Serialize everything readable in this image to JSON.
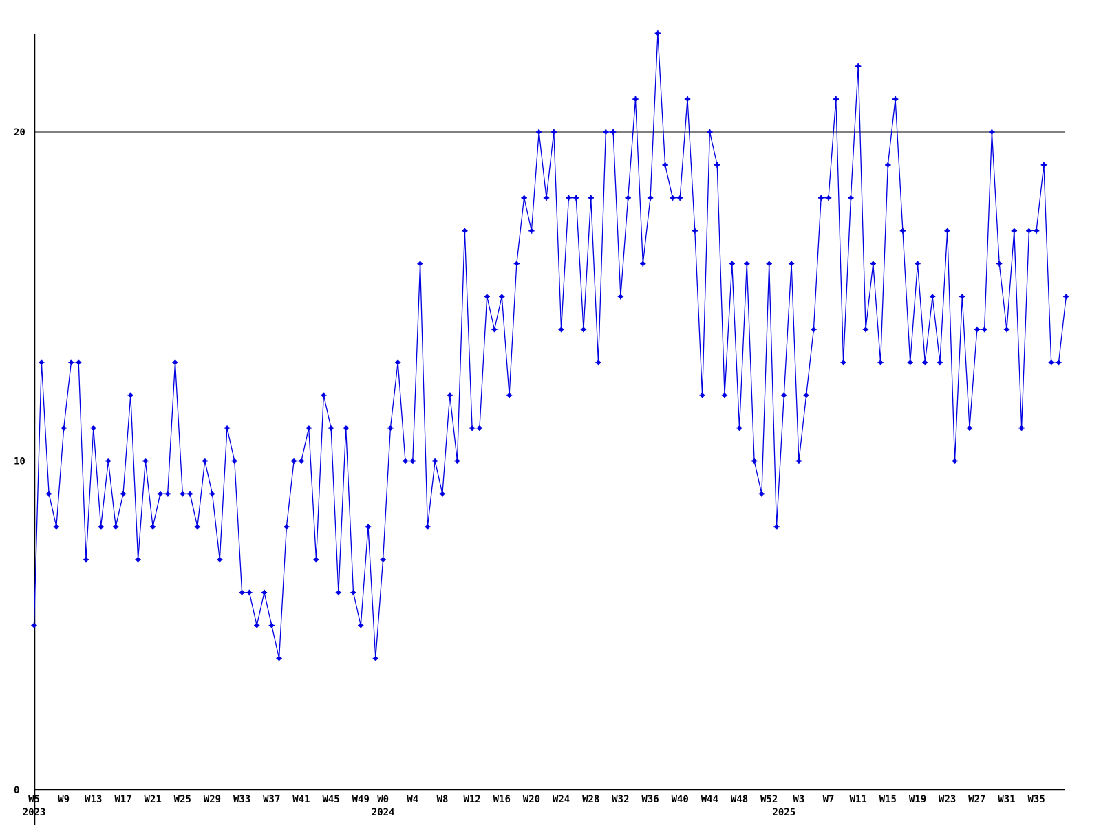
{
  "chart_data": {
    "type": "line",
    "title": "",
    "xlabel": "",
    "ylabel": "",
    "grid": "horizontal-only",
    "legend": "none",
    "background_color": "#ffffff",
    "axis_color": "#000000",
    "line_color": "#0000e0",
    "marker": "plus-diamond",
    "ylim": [
      0,
      23.1
    ],
    "y_ticks": [
      {
        "value": 0,
        "label": "0"
      },
      {
        "value": 10,
        "label": "10"
      },
      {
        "value": 20,
        "label": "20"
      }
    ],
    "gridline_values": [
      10,
      20
    ],
    "x_ticks": [
      {
        "i": 0,
        "label": "W5"
      },
      {
        "i": 4,
        "label": "W9"
      },
      {
        "i": 8,
        "label": "W13"
      },
      {
        "i": 12,
        "label": "W17"
      },
      {
        "i": 16,
        "label": "W21"
      },
      {
        "i": 20,
        "label": "W25"
      },
      {
        "i": 24,
        "label": "W29"
      },
      {
        "i": 28,
        "label": "W33"
      },
      {
        "i": 32,
        "label": "W37"
      },
      {
        "i": 36,
        "label": "W41"
      },
      {
        "i": 40,
        "label": "W45"
      },
      {
        "i": 44,
        "label": "W49"
      },
      {
        "i": 47,
        "label": "W0"
      },
      {
        "i": 51,
        "label": "W4"
      },
      {
        "i": 55,
        "label": "W8"
      },
      {
        "i": 59,
        "label": "W12"
      },
      {
        "i": 63,
        "label": "W16"
      },
      {
        "i": 67,
        "label": "W20"
      },
      {
        "i": 71,
        "label": "W24"
      },
      {
        "i": 75,
        "label": "W28"
      },
      {
        "i": 79,
        "label": "W32"
      },
      {
        "i": 83,
        "label": "W36"
      },
      {
        "i": 87,
        "label": "W40"
      },
      {
        "i": 91,
        "label": "W44"
      },
      {
        "i": 95,
        "label": "W48"
      },
      {
        "i": 99,
        "label": "W52"
      },
      {
        "i": 103,
        "label": "W3"
      },
      {
        "i": 107,
        "label": "W7"
      },
      {
        "i": 111,
        "label": "W11"
      },
      {
        "i": 115,
        "label": "W15"
      },
      {
        "i": 119,
        "label": "W19"
      },
      {
        "i": 123,
        "label": "W23"
      },
      {
        "i": 127,
        "label": "W27"
      },
      {
        "i": 131,
        "label": "W31"
      },
      {
        "i": 135,
        "label": "W35"
      }
    ],
    "year_labels": [
      {
        "i": 0,
        "label": "2023"
      },
      {
        "i": 47,
        "label": "2024"
      },
      {
        "i": 101,
        "label": "2025"
      }
    ],
    "weeks": [
      "2023-W5",
      "2023-W6",
      "2023-W7",
      "2023-W8",
      "2023-W9",
      "2023-W10",
      "2023-W11",
      "2023-W12",
      "2023-W13",
      "2023-W14",
      "2023-W15",
      "2023-W16",
      "2023-W17",
      "2023-W18",
      "2023-W19",
      "2023-W20",
      "2023-W21",
      "2023-W22",
      "2023-W23",
      "2023-W24",
      "2023-W25",
      "2023-W26",
      "2023-W27",
      "2023-W28",
      "2023-W29",
      "2023-W30",
      "2023-W31",
      "2023-W32",
      "2023-W33",
      "2023-W34",
      "2023-W35",
      "2023-W36",
      "2023-W37",
      "2023-W38",
      "2023-W39",
      "2023-W40",
      "2023-W41",
      "2023-W42",
      "2023-W43",
      "2023-W44",
      "2023-W45",
      "2023-W46",
      "2023-W47",
      "2023-W48",
      "2023-W49",
      "2023-W50",
      "2023-W51",
      "2024-W0",
      "2024-W1",
      "2024-W2",
      "2024-W3",
      "2024-W4",
      "2024-W5",
      "2024-W6",
      "2024-W7",
      "2024-W8",
      "2024-W9",
      "2024-W10",
      "2024-W11",
      "2024-W12",
      "2024-W13",
      "2024-W14",
      "2024-W15",
      "2024-W16",
      "2024-W17",
      "2024-W18",
      "2024-W19",
      "2024-W20",
      "2024-W21",
      "2024-W22",
      "2024-W23",
      "2024-W24",
      "2024-W25",
      "2024-W26",
      "2024-W27",
      "2024-W28",
      "2024-W29",
      "2024-W30",
      "2024-W31",
      "2024-W32",
      "2024-W33",
      "2024-W34",
      "2024-W35",
      "2024-W36",
      "2024-W37",
      "2024-W38",
      "2024-W39",
      "2024-W40",
      "2024-W41",
      "2024-W42",
      "2024-W43",
      "2024-W44",
      "2024-W45",
      "2024-W46",
      "2024-W47",
      "2024-W48",
      "2024-W49",
      "2024-W50",
      "2024-W51",
      "2024-W52",
      "2025-W0",
      "2025-W1",
      "2025-W2",
      "2025-W3",
      "2025-W4",
      "2025-W5",
      "2025-W6",
      "2025-W7",
      "2025-W8",
      "2025-W9",
      "2025-W10",
      "2025-W11",
      "2025-W12",
      "2025-W13",
      "2025-W14",
      "2025-W15",
      "2025-W16",
      "2025-W17",
      "2025-W18",
      "2025-W19",
      "2025-W20",
      "2025-W21",
      "2025-W22",
      "2025-W23",
      "2025-W24",
      "2025-W25",
      "2025-W26",
      "2025-W27",
      "2025-W28",
      "2025-W29",
      "2025-W30",
      "2025-W31",
      "2025-W32",
      "2025-W33",
      "2025-W34",
      "2025-W35",
      "2025-W36",
      "2025-W37",
      "2025-W38",
      "2025-W39"
    ],
    "values": [
      5,
      13,
      9,
      8,
      11,
      13,
      13,
      7,
      11,
      8,
      10,
      8,
      9,
      12,
      7,
      10,
      8,
      9,
      9,
      13,
      9,
      9,
      8,
      10,
      9,
      7,
      11,
      10,
      6,
      6,
      5,
      6,
      5,
      4,
      8,
      10,
      10,
      11,
      7,
      12,
      11,
      6,
      11,
      6,
      5,
      8,
      4,
      7,
      11,
      13,
      10,
      10,
      16,
      8,
      10,
      9,
      12,
      10,
      17,
      11,
      11,
      15,
      14,
      15,
      12,
      16,
      18,
      17,
      20,
      18,
      20,
      14,
      18,
      18,
      14,
      18,
      13,
      20,
      20,
      15,
      18,
      21,
      16,
      18,
      23,
      19,
      18,
      18,
      21,
      17,
      12,
      20,
      19,
      12,
      16,
      11,
      16,
      10,
      9,
      16,
      8,
      12,
      16,
      10,
      12,
      14,
      18,
      18,
      21,
      13,
      18,
      22,
      14,
      16,
      13,
      19,
      21,
      17,
      13,
      16,
      13,
      15,
      13,
      17,
      10,
      15,
      11,
      14,
      14,
      20,
      16,
      14,
      17,
      11,
      17,
      17,
      19,
      13,
      13,
      15
    ]
  }
}
